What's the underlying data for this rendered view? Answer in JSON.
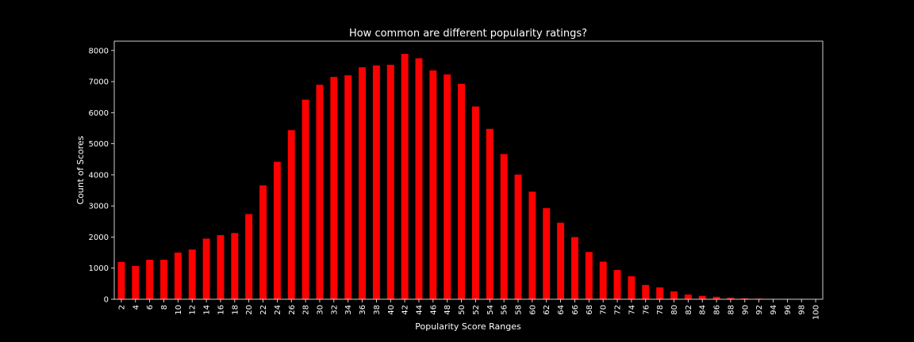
{
  "chart_data": {
    "type": "bar",
    "title": "How common are different popularity ratings?",
    "xlabel": "Popularity Score Ranges",
    "ylabel": "Count of Scores",
    "ylim": [
      0,
      8300
    ],
    "yticks": [
      0,
      1000,
      2000,
      3000,
      4000,
      5000,
      6000,
      7000,
      8000
    ],
    "categories": [
      "2",
      "4",
      "6",
      "8",
      "10",
      "12",
      "14",
      "16",
      "18",
      "20",
      "22",
      "24",
      "26",
      "28",
      "30",
      "32",
      "34",
      "36",
      "38",
      "40",
      "42",
      "44",
      "46",
      "48",
      "50",
      "52",
      "54",
      "56",
      "58",
      "60",
      "62",
      "64",
      "66",
      "68",
      "70",
      "72",
      "74",
      "76",
      "78",
      "80",
      "82",
      "84",
      "86",
      "88",
      "90",
      "92",
      "94",
      "96",
      "98",
      "100"
    ],
    "values": [
      1200,
      1070,
      1270,
      1270,
      1500,
      1600,
      1950,
      2060,
      2130,
      2740,
      3660,
      4420,
      5440,
      6420,
      6900,
      7150,
      7200,
      7460,
      7520,
      7540,
      7890,
      7750,
      7360,
      7230,
      6930,
      6200,
      5480,
      4670,
      4010,
      3460,
      2930,
      2460,
      2000,
      1520,
      1210,
      940,
      740,
      460,
      380,
      250,
      150,
      110,
      80,
      50,
      30,
      20,
      10,
      8,
      5,
      3
    ],
    "grid": false,
    "legend": "none",
    "colors": {
      "bar": "#ff0000",
      "background": "#000000",
      "axes": "#ffffff",
      "text": "#ffffff"
    }
  }
}
